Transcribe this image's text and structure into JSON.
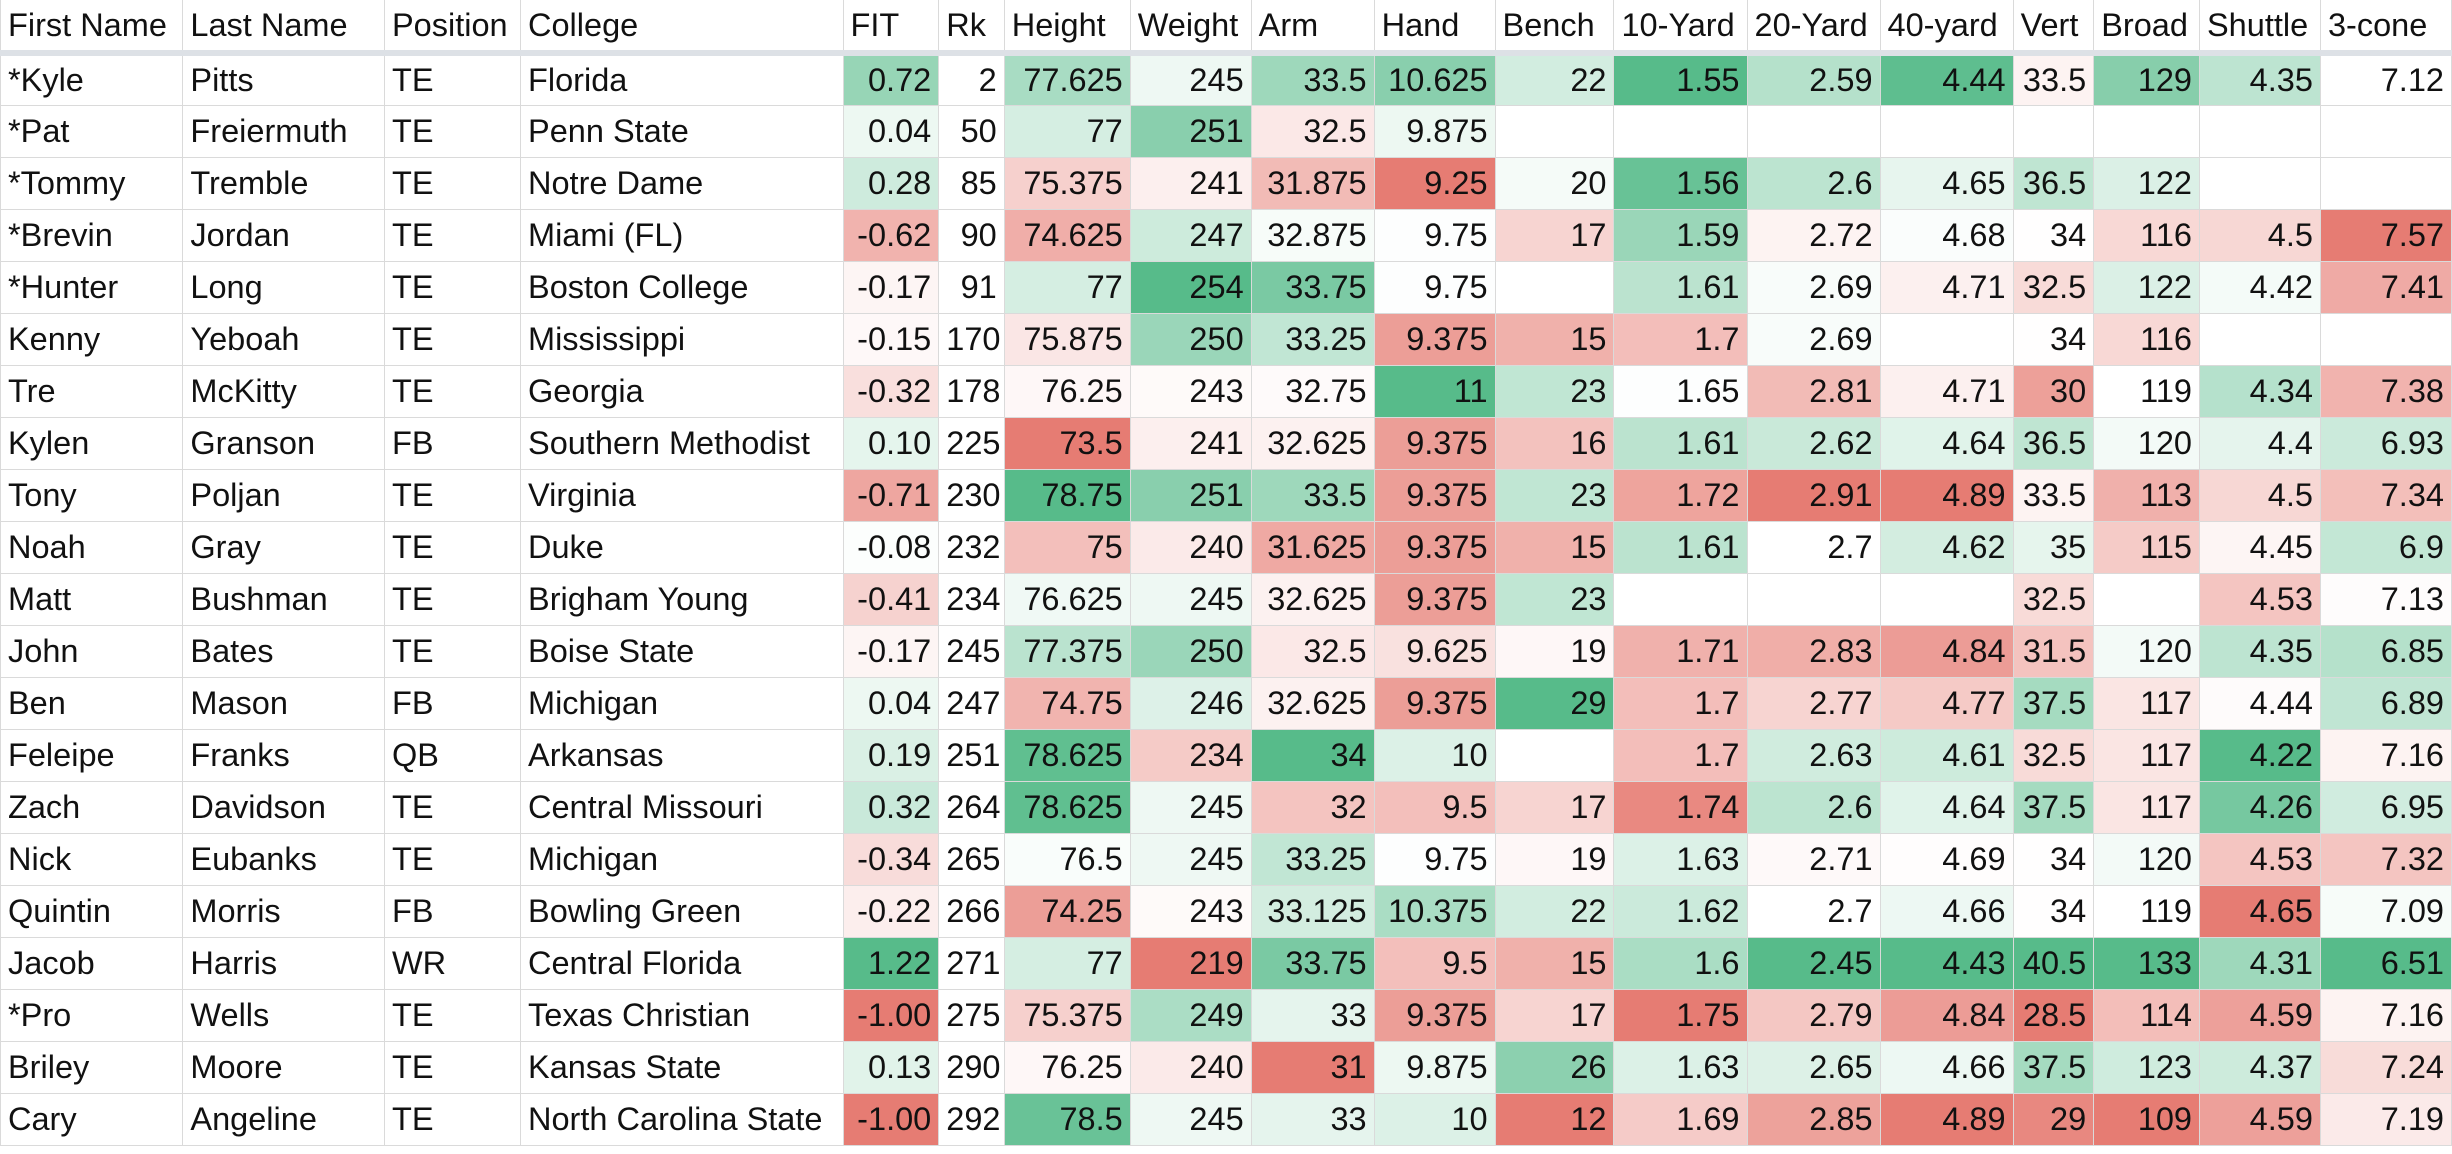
{
  "columns": [
    {
      "key": "first",
      "label": "First Name",
      "type": "text"
    },
    {
      "key": "last",
      "label": "Last Name",
      "type": "text"
    },
    {
      "key": "pos",
      "label": "Position",
      "type": "text"
    },
    {
      "key": "college",
      "label": "College",
      "type": "text"
    },
    {
      "key": "fit",
      "label": "FIT",
      "type": "num"
    },
    {
      "key": "rk",
      "label": "Rk",
      "type": "num"
    },
    {
      "key": "height",
      "label": "Height",
      "type": "num"
    },
    {
      "key": "weight",
      "label": "Weight",
      "type": "num"
    },
    {
      "key": "arm",
      "label": "Arm",
      "type": "num"
    },
    {
      "key": "hand",
      "label": "Hand",
      "type": "num"
    },
    {
      "key": "bench",
      "label": "Bench",
      "type": "num"
    },
    {
      "key": "y10",
      "label": "10-Yard",
      "type": "num"
    },
    {
      "key": "y20",
      "label": "20-Yard",
      "type": "num"
    },
    {
      "key": "y40",
      "label": "40-yard",
      "type": "num"
    },
    {
      "key": "vert",
      "label": "Vert",
      "type": "num"
    },
    {
      "key": "broad",
      "label": "Broad",
      "type": "num"
    },
    {
      "key": "shuttle",
      "label": "Shuttle",
      "type": "num"
    },
    {
      "key": "cone",
      "label": "3-cone",
      "type": "num"
    }
  ],
  "color_scale": {
    "good": "#57bb8a",
    "neutral": "#ffffff",
    "bad": "#e67c73"
  },
  "color_direction": {
    "fit": 1,
    "height": 1,
    "weight": 1,
    "arm": 1,
    "hand": 1,
    "bench": 1,
    "y10": -1,
    "y20": -1,
    "y40": -1,
    "vert": 1,
    "broad": 1,
    "shuttle": -1,
    "cone": -1
  },
  "rows": [
    [
      "*Kyle",
      "Pitts",
      "TE",
      "Florida",
      "0.72",
      "2",
      "77.625",
      "245",
      "33.5",
      "10.625",
      "22",
      "1.55",
      "2.59",
      "4.44",
      "33.5",
      "129",
      "4.35",
      "7.12"
    ],
    [
      "*Pat",
      "Freiermuth",
      "TE",
      "Penn State",
      "0.04",
      "50",
      "77",
      "251",
      "32.5",
      "9.875",
      "",
      "",
      "",
      "",
      "",
      "",
      "",
      ""
    ],
    [
      "*Tommy",
      "Tremble",
      "TE",
      "Notre Dame",
      "0.28",
      "85",
      "75.375",
      "241",
      "31.875",
      "9.25",
      "20",
      "1.56",
      "2.6",
      "4.65",
      "36.5",
      "122",
      "",
      ""
    ],
    [
      "*Brevin",
      "Jordan",
      "TE",
      "Miami (FL)",
      "-0.62",
      "90",
      "74.625",
      "247",
      "32.875",
      "9.75",
      "17",
      "1.59",
      "2.72",
      "4.68",
      "34",
      "116",
      "4.5",
      "7.57"
    ],
    [
      "*Hunter",
      "Long",
      "TE",
      "Boston College",
      "-0.17",
      "91",
      "77",
      "254",
      "33.75",
      "9.75",
      "",
      "1.61",
      "2.69",
      "4.71",
      "32.5",
      "122",
      "4.42",
      "7.41"
    ],
    [
      "Kenny",
      "Yeboah",
      "TE",
      "Mississippi",
      "-0.15",
      "170",
      "75.875",
      "250",
      "33.25",
      "9.375",
      "15",
      "1.7",
      "2.69",
      "",
      "34",
      "116",
      "",
      ""
    ],
    [
      "Tre",
      "McKitty",
      "TE",
      "Georgia",
      "-0.32",
      "178",
      "76.25",
      "243",
      "32.75",
      "11",
      "23",
      "1.65",
      "2.81",
      "4.71",
      "30",
      "119",
      "4.34",
      "7.38"
    ],
    [
      "Kylen",
      "Granson",
      "FB",
      "Southern Methodist",
      "0.10",
      "225",
      "73.5",
      "241",
      "32.625",
      "9.375",
      "16",
      "1.61",
      "2.62",
      "4.64",
      "36.5",
      "120",
      "4.4",
      "6.93"
    ],
    [
      "Tony",
      "Poljan",
      "TE",
      "Virginia",
      "-0.71",
      "230",
      "78.75",
      "251",
      "33.5",
      "9.375",
      "23",
      "1.72",
      "2.91",
      "4.89",
      "33.5",
      "113",
      "4.5",
      "7.34"
    ],
    [
      "Noah",
      "Gray",
      "TE",
      "Duke",
      "-0.08",
      "232",
      "75",
      "240",
      "31.625",
      "9.375",
      "15",
      "1.61",
      "2.7",
      "4.62",
      "35",
      "115",
      "4.45",
      "6.9"
    ],
    [
      "Matt",
      "Bushman",
      "TE",
      "Brigham Young",
      "-0.41",
      "234",
      "76.625",
      "245",
      "32.625",
      "9.375",
      "23",
      "",
      "",
      "",
      "32.5",
      "",
      "4.53",
      "7.13"
    ],
    [
      "John",
      "Bates",
      "TE",
      "Boise State",
      "-0.17",
      "245",
      "77.375",
      "250",
      "32.5",
      "9.625",
      "19",
      "1.71",
      "2.83",
      "4.84",
      "31.5",
      "120",
      "4.35",
      "6.85"
    ],
    [
      "Ben",
      "Mason",
      "FB",
      "Michigan",
      "0.04",
      "247",
      "74.75",
      "246",
      "32.625",
      "9.375",
      "29",
      "1.7",
      "2.77",
      "4.77",
      "37.5",
      "117",
      "4.44",
      "6.89"
    ],
    [
      "Feleipe",
      "Franks",
      "QB",
      "Arkansas",
      "0.19",
      "251",
      "78.625",
      "234",
      "34",
      "10",
      "",
      "1.7",
      "2.63",
      "4.61",
      "32.5",
      "117",
      "4.22",
      "7.16"
    ],
    [
      "Zach",
      "Davidson",
      "TE",
      "Central Missouri",
      "0.32",
      "264",
      "78.625",
      "245",
      "32",
      "9.5",
      "17",
      "1.74",
      "2.6",
      "4.64",
      "37.5",
      "117",
      "4.26",
      "6.95"
    ],
    [
      "Nick",
      "Eubanks",
      "TE",
      "Michigan",
      "-0.34",
      "265",
      "76.5",
      "245",
      "33.25",
      "9.75",
      "19",
      "1.63",
      "2.71",
      "4.69",
      "34",
      "120",
      "4.53",
      "7.32"
    ],
    [
      "Quintin",
      "Morris",
      "FB",
      "Bowling Green",
      "-0.22",
      "266",
      "74.25",
      "243",
      "33.125",
      "10.375",
      "22",
      "1.62",
      "2.7",
      "4.66",
      "34",
      "119",
      "4.65",
      "7.09"
    ],
    [
      "Jacob",
      "Harris",
      "WR",
      "Central Florida",
      "1.22",
      "271",
      "77",
      "219",
      "33.75",
      "9.5",
      "15",
      "1.6",
      "2.45",
      "4.43",
      "40.5",
      "133",
      "4.31",
      "6.51"
    ],
    [
      "*Pro",
      "Wells",
      "TE",
      "Texas Christian",
      "-1.00",
      "275",
      "75.375",
      "249",
      "33",
      "9.375",
      "17",
      "1.75",
      "2.79",
      "4.84",
      "28.5",
      "114",
      "4.59",
      "7.16"
    ],
    [
      "Briley",
      "Moore",
      "TE",
      "Kansas State",
      "0.13",
      "290",
      "76.25",
      "240",
      "31",
      "9.875",
      "26",
      "1.63",
      "2.65",
      "4.66",
      "37.5",
      "123",
      "4.37",
      "7.24"
    ],
    [
      "Cary",
      "Angeline",
      "TE",
      "North Carolina State",
      "-1.00",
      "292",
      "78.5",
      "245",
      "33",
      "10",
      "12",
      "1.69",
      "2.85",
      "4.89",
      "29",
      "109",
      "4.59",
      "7.19"
    ]
  ]
}
